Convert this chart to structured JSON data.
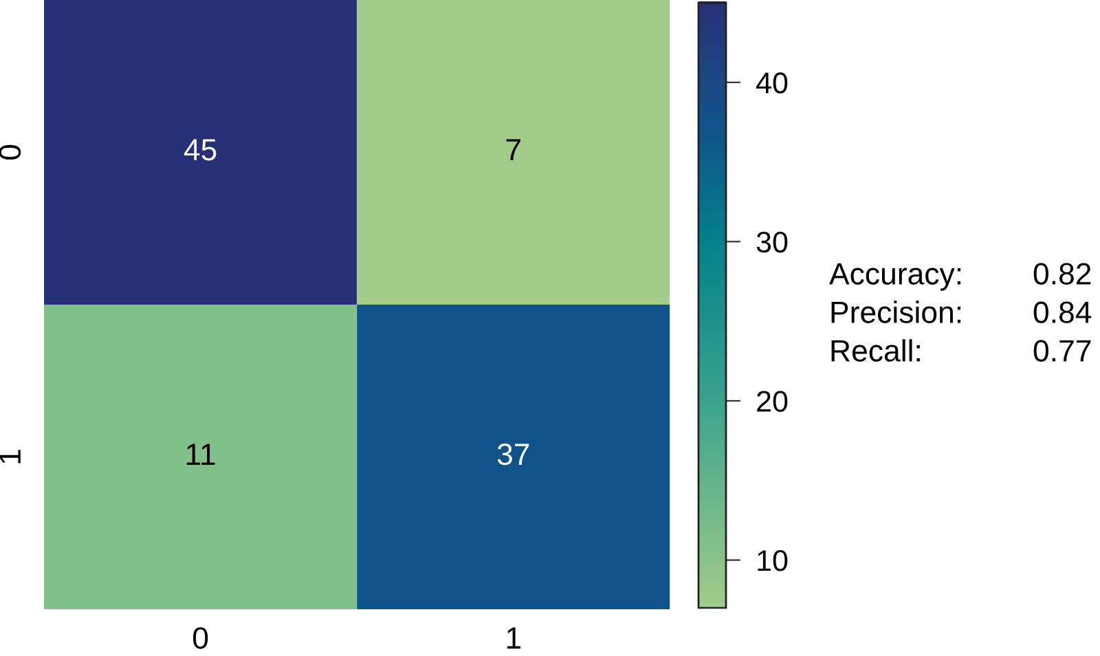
{
  "chart_data": {
    "type": "heatmap",
    "categories": [
      "0",
      "1"
    ],
    "y_categories": [
      "0",
      "1"
    ],
    "cells": [
      [
        45,
        7
      ],
      [
        11,
        37
      ]
    ],
    "clim": [
      7,
      45
    ],
    "cticks": [
      10,
      20,
      30,
      40
    ],
    "data_labels": true,
    "annotations": [
      "Accuracy: 0.82",
      "Precision: 0.84",
      "Recall: 0.77"
    ]
  }
}
